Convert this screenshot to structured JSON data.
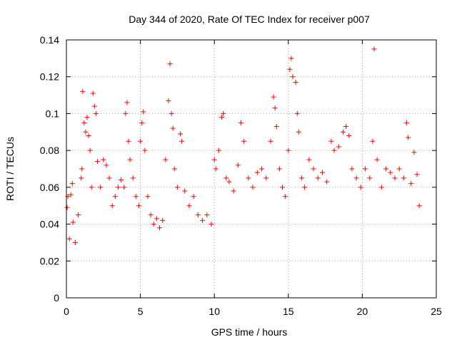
{
  "chart_data": {
    "type": "scatter",
    "title": "Day 344 of 2020, Rate Of TEC Index for receiver p007",
    "xlabel": "GPS time / hours",
    "ylabel": "ROTI / TECUs",
    "xlim": [
      0,
      25
    ],
    "ylim": [
      0,
      0.14
    ],
    "x_ticks": [
      0,
      5,
      10,
      15,
      20,
      25
    ],
    "x_tick_labels": [
      "0",
      "5",
      "10",
      "15",
      "20",
      "25"
    ],
    "y_ticks": [
      0,
      0.02,
      0.04,
      0.06,
      0.08,
      0.1,
      0.12,
      0.14
    ],
    "y_tick_labels": [
      "0",
      "0.02",
      "0.04",
      "0.06",
      "0.08",
      "0.1",
      "0.12",
      "0.14"
    ],
    "grid": true,
    "marker": "+",
    "series": [
      {
        "name": "ROTI",
        "color": "#ff0000",
        "points": [
          [
            0.05,
            0.049
          ],
          [
            0.1,
            0.055
          ],
          [
            0.2,
            0.032
          ],
          [
            0.3,
            0.056
          ],
          [
            0.4,
            0.062
          ],
          [
            0.45,
            0.041
          ],
          [
            0.6,
            0.03
          ],
          [
            0.8,
            0.045
          ],
          [
            1.0,
            0.065
          ],
          [
            1.05,
            0.07
          ],
          [
            1.1,
            0.112
          ],
          [
            1.2,
            0.095
          ],
          [
            1.3,
            0.09
          ],
          [
            1.4,
            0.098
          ],
          [
            1.5,
            0.088
          ],
          [
            1.6,
            0.08
          ],
          [
            1.7,
            0.06
          ],
          [
            1.8,
            0.111
          ],
          [
            1.9,
            0.104
          ],
          [
            2.0,
            0.1
          ],
          [
            2.1,
            0.074
          ],
          [
            2.3,
            0.06
          ],
          [
            2.5,
            0.075
          ],
          [
            2.7,
            0.072
          ],
          [
            2.9,
            0.065
          ],
          [
            3.1,
            0.05
          ],
          [
            3.3,
            0.055
          ],
          [
            3.5,
            0.06
          ],
          [
            3.7,
            0.064
          ],
          [
            3.9,
            0.06
          ],
          [
            4.0,
            0.1
          ],
          [
            4.1,
            0.106
          ],
          [
            4.2,
            0.085
          ],
          [
            4.3,
            0.075
          ],
          [
            4.5,
            0.065
          ],
          [
            4.7,
            0.055
          ],
          [
            4.9,
            0.05
          ],
          [
            5.0,
            0.085
          ],
          [
            5.1,
            0.095
          ],
          [
            5.2,
            0.101
          ],
          [
            5.3,
            0.08
          ],
          [
            5.5,
            0.055
          ],
          [
            5.7,
            0.045
          ],
          [
            5.9,
            0.04
          ],
          [
            6.1,
            0.043
          ],
          [
            6.3,
            0.038
          ],
          [
            6.5,
            0.042
          ],
          [
            6.7,
            0.075
          ],
          [
            6.9,
            0.107
          ],
          [
            7.0,
            0.127
          ],
          [
            7.1,
            0.1
          ],
          [
            7.2,
            0.092
          ],
          [
            7.3,
            0.07
          ],
          [
            7.5,
            0.06
          ],
          [
            7.7,
            0.089
          ],
          [
            7.8,
            0.085
          ],
          [
            8.0,
            0.058
          ],
          [
            8.3,
            0.05
          ],
          [
            8.6,
            0.055
          ],
          [
            8.9,
            0.045
          ],
          [
            9.2,
            0.042
          ],
          [
            9.5,
            0.045
          ],
          [
            9.8,
            0.04
          ],
          [
            10.0,
            0.075
          ],
          [
            10.1,
            0.07
          ],
          [
            10.3,
            0.08
          ],
          [
            10.5,
            0.098
          ],
          [
            10.6,
            0.1
          ],
          [
            10.8,
            0.065
          ],
          [
            11.0,
            0.063
          ],
          [
            11.3,
            0.058
          ],
          [
            11.6,
            0.072
          ],
          [
            11.8,
            0.095
          ],
          [
            12.0,
            0.085
          ],
          [
            12.3,
            0.065
          ],
          [
            12.6,
            0.06
          ],
          [
            12.9,
            0.068
          ],
          [
            13.2,
            0.07
          ],
          [
            13.5,
            0.065
          ],
          [
            13.8,
            0.085
          ],
          [
            14.0,
            0.109
          ],
          [
            14.1,
            0.103
          ],
          [
            14.2,
            0.093
          ],
          [
            14.4,
            0.07
          ],
          [
            14.6,
            0.06
          ],
          [
            14.8,
            0.055
          ],
          [
            15.0,
            0.08
          ],
          [
            15.1,
            0.124
          ],
          [
            15.2,
            0.13
          ],
          [
            15.3,
            0.12
          ],
          [
            15.5,
            0.117
          ],
          [
            15.6,
            0.1
          ],
          [
            15.7,
            0.09
          ],
          [
            15.9,
            0.065
          ],
          [
            16.1,
            0.06
          ],
          [
            16.4,
            0.075
          ],
          [
            16.7,
            0.07
          ],
          [
            17.0,
            0.065
          ],
          [
            17.3,
            0.068
          ],
          [
            17.6,
            0.063
          ],
          [
            17.9,
            0.085
          ],
          [
            18.1,
            0.08
          ],
          [
            18.4,
            0.082
          ],
          [
            18.7,
            0.09
          ],
          [
            18.9,
            0.093
          ],
          [
            19.1,
            0.088
          ],
          [
            19.3,
            0.07
          ],
          [
            19.6,
            0.065
          ],
          [
            19.9,
            0.06
          ],
          [
            20.2,
            0.07
          ],
          [
            20.5,
            0.065
          ],
          [
            20.7,
            0.085
          ],
          [
            20.8,
            0.135
          ],
          [
            21.0,
            0.075
          ],
          [
            21.3,
            0.06
          ],
          [
            21.6,
            0.07
          ],
          [
            21.9,
            0.068
          ],
          [
            22.2,
            0.065
          ],
          [
            22.5,
            0.07
          ],
          [
            22.8,
            0.065
          ],
          [
            23.0,
            0.095
          ],
          [
            23.1,
            0.087
          ],
          [
            23.3,
            0.062
          ],
          [
            23.5,
            0.079
          ],
          [
            23.7,
            0.067
          ],
          [
            23.85,
            0.05
          ]
        ]
      }
    ]
  }
}
